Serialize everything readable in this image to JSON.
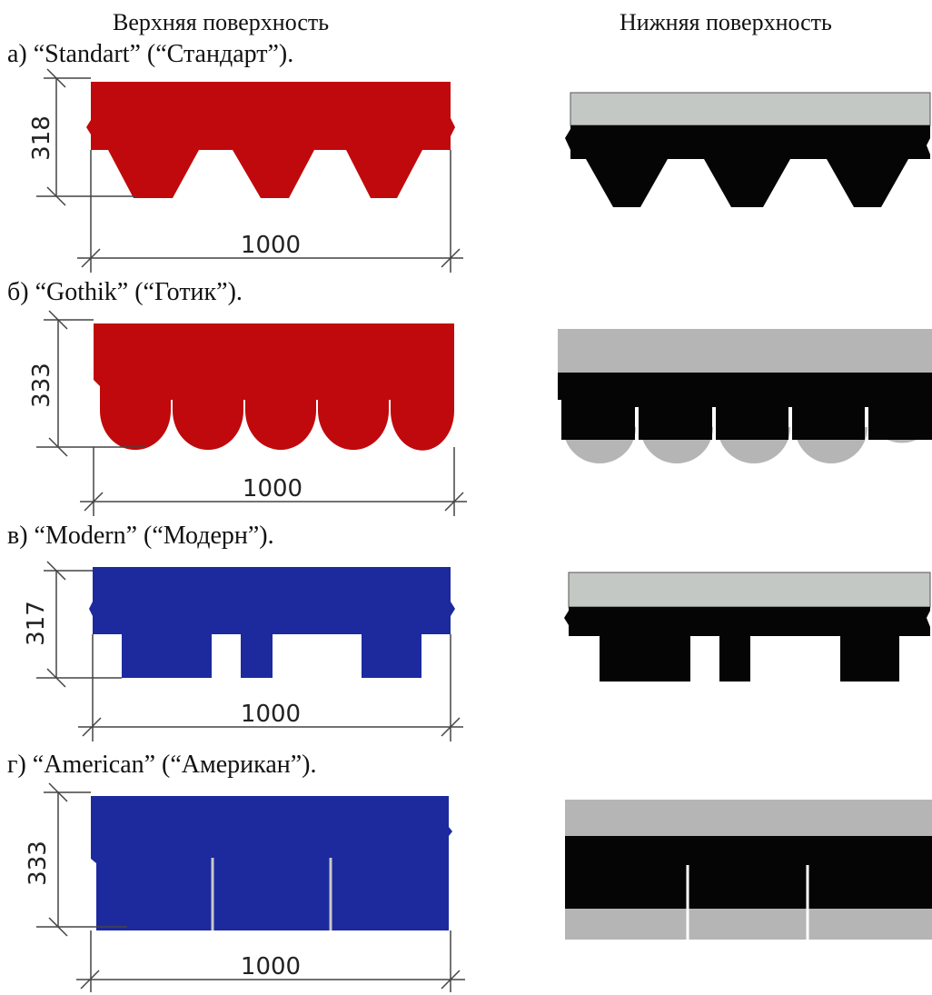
{
  "headers": {
    "top": "Верхняя поверхность",
    "bottom": "Нижняя поверхность"
  },
  "colors": {
    "red": "#c0090c",
    "blue": "#1c2a9e",
    "black": "#050505",
    "gray": "#b5b5b5",
    "granule": "#c4c8c4",
    "dim_line": "#444444"
  },
  "shingles": [
    {
      "caption": "а) “Standart” (“Стандарт”).",
      "height": "318",
      "width": "1000",
      "shape": "triangle",
      "color": "red"
    },
    {
      "caption": "б) “Gothik” (“Готик”).",
      "height": "333",
      "width": "1000",
      "shape": "scallop",
      "color": "red"
    },
    {
      "caption": "в) “Modern” (“Модерн”).",
      "height": "317",
      "width": "1000",
      "shape": "rect",
      "color": "blue"
    },
    {
      "caption": "г) “American” (“Американ”).",
      "height": "333",
      "width": "1000",
      "shape": "slot",
      "color": "blue"
    }
  ]
}
